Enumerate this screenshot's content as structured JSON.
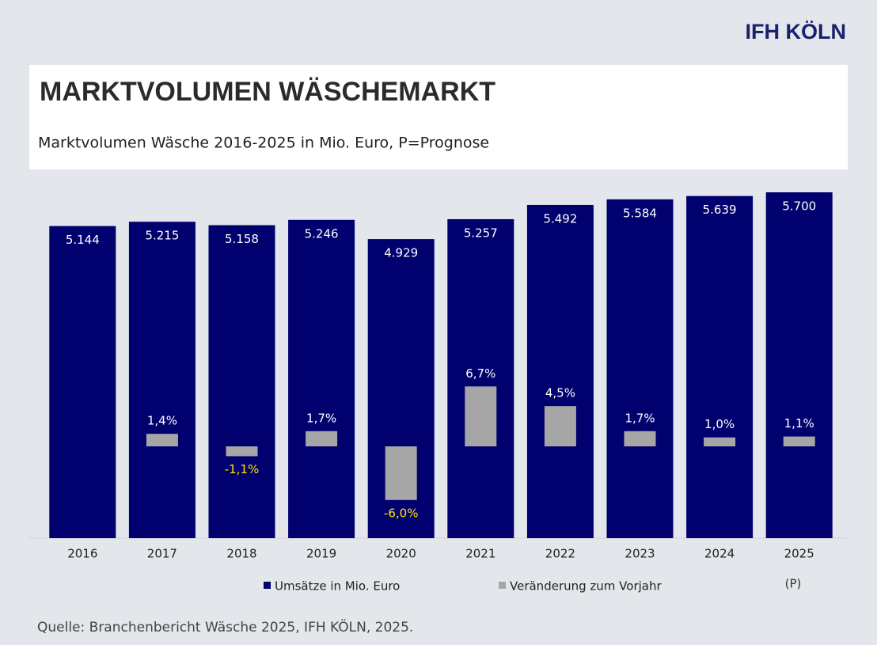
{
  "logo": "IFH KÖLN",
  "chart_data": {
    "type": "bar",
    "title": "MARKTVOLUMEN WÄSCHEMARKT",
    "subtitle": "Marktvolumen Wäsche 2016-2025 in Mio. Euro, P=Prognose",
    "categories": [
      "2016",
      "2017",
      "2018",
      "2019",
      "2020",
      "2021",
      "2022",
      "2023",
      "2024",
      "2025"
    ],
    "series": [
      {
        "name": "Umsätze in Mio. Euro",
        "color": "#00006e",
        "values": [
          5144,
          5215,
          5158,
          5246,
          4929,
          5257,
          5492,
          5584,
          5639,
          5700
        ],
        "value_labels": [
          "5.144",
          "5.215",
          "5.158",
          "5.246",
          "4.929",
          "5.257",
          "5.492",
          "5.584",
          "5.639",
          "5.700"
        ]
      },
      {
        "name": "Veränderung zum Vorjahr",
        "color": "#a6a6a6",
        "values": [
          null,
          1.4,
          -1.1,
          1.7,
          -6.0,
          6.7,
          4.5,
          1.7,
          1.0,
          1.1
        ],
        "value_labels": [
          null,
          "1,4%",
          "-1,1%",
          "1,7%",
          "-6,0%",
          "6,7%",
          "4,5%",
          "1,7%",
          "1,0%",
          "1,1%"
        ]
      }
    ],
    "negative_label_color": "#ffe600",
    "note": "(P)",
    "source": "Quelle: Branchenbericht Wäsche 2025, IFH KÖLN, 2025."
  }
}
